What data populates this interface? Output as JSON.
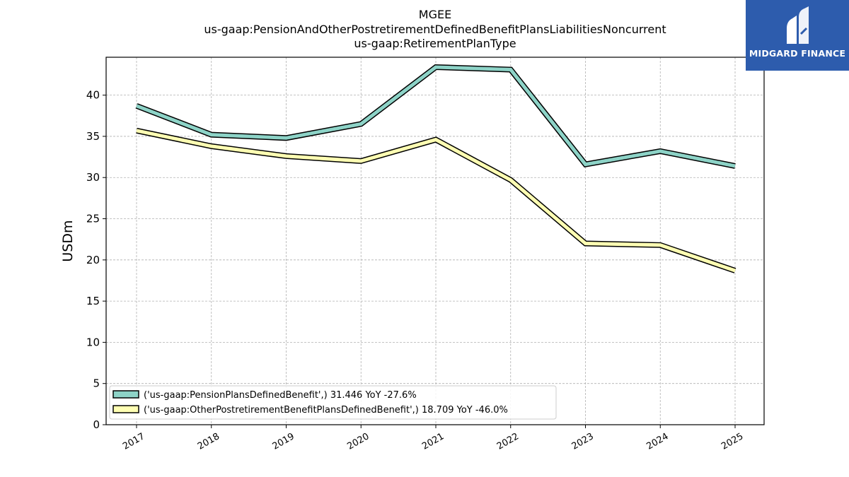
{
  "header": {
    "title_line1": "MGEE",
    "title_line2": "us-gaap:PensionAndOtherPostretirementDefinedBenefitPlansLiabilitiesNoncurrent",
    "title_line3": "us-gaap:RetirementPlanType"
  },
  "logo": {
    "text": "MIDGARD FINANCE",
    "icon": "midgard-logo-icon",
    "background": "#2d5cad"
  },
  "chart_data": {
    "type": "line",
    "x": [
      "2017",
      "2018",
      "2019",
      "2020",
      "2021",
      "2022",
      "2023",
      "2024",
      "2025"
    ],
    "series": [
      {
        "name": "('us-gaap:PensionPlansDefinedBenefit',) 31.446 YoY -27.6%",
        "values": [
          38.7,
          35.2,
          34.8,
          36.5,
          43.4,
          43.1,
          31.6,
          33.2,
          31.4
        ],
        "color": "#8dd3c7"
      },
      {
        "name": "('us-gaap:OtherPostretirementBenefitPlansDefinedBenefit',) 18.709 YoY -46.0%",
        "values": [
          35.7,
          33.8,
          32.6,
          32.0,
          34.6,
          29.7,
          22.0,
          21.8,
          18.7
        ],
        "color": "#ffffb3"
      }
    ],
    "ylabel": "USDm",
    "xlabel": "",
    "ylim": [
      0,
      44.6
    ],
    "yticks": [
      0,
      5,
      10,
      15,
      20,
      25,
      30,
      35,
      40
    ],
    "grid": true,
    "legend_position": "lower-left"
  }
}
